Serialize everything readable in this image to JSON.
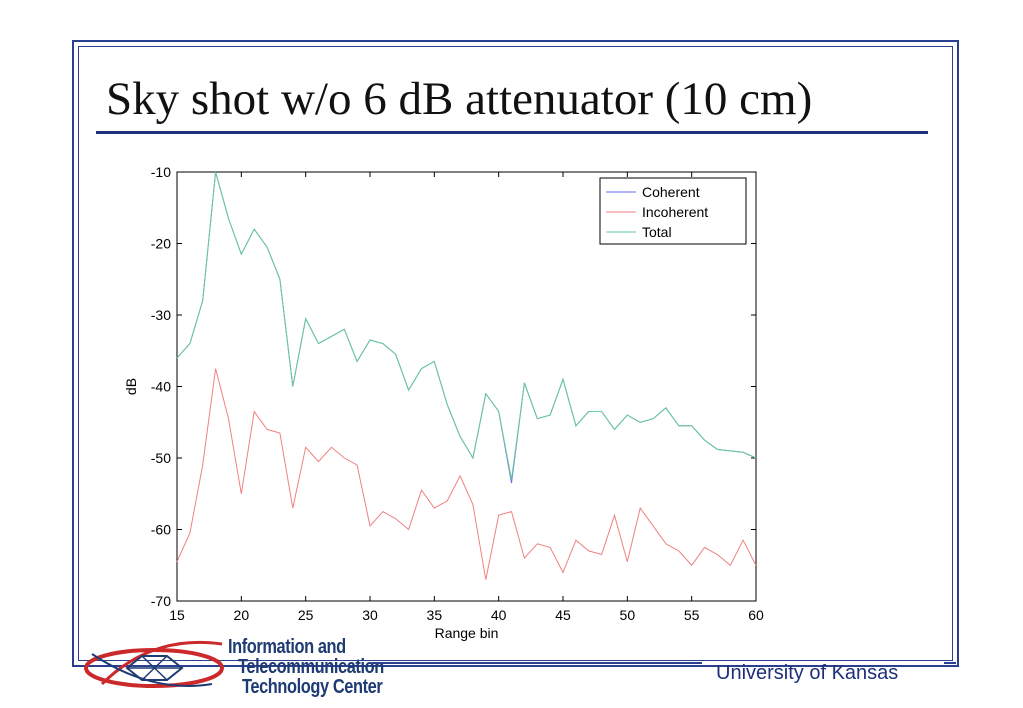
{
  "slide": {
    "title": "Sky shot w/o 6 dB attenuator (10 cm)",
    "footer_org": "University of Kansas",
    "logo_lines": [
      "Information and",
      "Telecommunication",
      "Technology Center"
    ]
  },
  "colors": {
    "frame": "#2a3f8f",
    "coherent": "#6a6af0",
    "incoherent": "#f08080",
    "total": "#66cc99"
  },
  "chart_data": {
    "type": "line",
    "title": "",
    "xlabel": "Range bin",
    "ylabel": "dB",
    "xlim": [
      15,
      60
    ],
    "ylim": [
      -70,
      -10
    ],
    "xticks": [
      15,
      20,
      25,
      30,
      35,
      40,
      45,
      50,
      55,
      60
    ],
    "yticks": [
      -10,
      -20,
      -30,
      -40,
      -50,
      -60,
      -70
    ],
    "grid": false,
    "legend_position": "top-right",
    "x": [
      15,
      16,
      17,
      18,
      19,
      20,
      21,
      22,
      23,
      24,
      25,
      26,
      27,
      28,
      29,
      30,
      31,
      32,
      33,
      34,
      35,
      36,
      37,
      38,
      39,
      40,
      41,
      42,
      43,
      44,
      45,
      46,
      47,
      48,
      49,
      50,
      51,
      52,
      53,
      54,
      55,
      56,
      57,
      58,
      59,
      60
    ],
    "series": [
      {
        "name": "Coherent",
        "color": "#6a6af0",
        "values": [
          -36,
          -34,
          -28,
          -10,
          -16.5,
          -21.5,
          -18,
          -20.5,
          -25,
          -40,
          -30.5,
          -34,
          -33,
          -32,
          -36.5,
          -33.5,
          -34,
          -35.5,
          -40.5,
          -37.5,
          -36.5,
          -42.5,
          -47,
          -50,
          -41,
          -43.5,
          -53.5,
          -39.5,
          -44.5,
          -44,
          -39,
          -45.5,
          -43.5,
          -43.5,
          -46,
          -44,
          -45,
          -44.5,
          -43,
          -45.5,
          -45.5,
          -47.5,
          -48.8,
          -49,
          -49.2,
          -50
        ]
      },
      {
        "name": "Incoherent",
        "color": "#f08080",
        "values": [
          -64.5,
          -60.5,
          -51,
          -37.5,
          -44.5,
          -55,
          -43.5,
          -46,
          -46.5,
          -57,
          -48.5,
          -50.5,
          -48.5,
          -50,
          -51,
          -59.5,
          -57.5,
          -58.5,
          -60,
          -54.5,
          -57,
          -56,
          -52.5,
          -56.5,
          -67,
          -58,
          -57.5,
          -64,
          -62,
          -62.5,
          -66,
          -61.5,
          -63,
          -63.5,
          -58,
          -64.5,
          -57,
          -59.5,
          -62,
          -63,
          -65,
          -62.5,
          -63.5,
          -65,
          -61.5,
          -65
        ]
      },
      {
        "name": "Total",
        "color": "#66cc99",
        "values": [
          -36,
          -34,
          -28,
          -10,
          -16.5,
          -21.5,
          -18,
          -20.5,
          -25,
          -40,
          -30.5,
          -34,
          -33,
          -32,
          -36.5,
          -33.5,
          -34,
          -35.5,
          -40.5,
          -37.5,
          -36.5,
          -42.5,
          -47,
          -50,
          -41,
          -43.5,
          -53,
          -39.5,
          -44.5,
          -44,
          -39,
          -45.5,
          -43.5,
          -43.5,
          -46,
          -44,
          -45,
          -44.5,
          -43,
          -45.5,
          -45.5,
          -47.5,
          -48.8,
          -49,
          -49.2,
          -50
        ]
      }
    ]
  }
}
